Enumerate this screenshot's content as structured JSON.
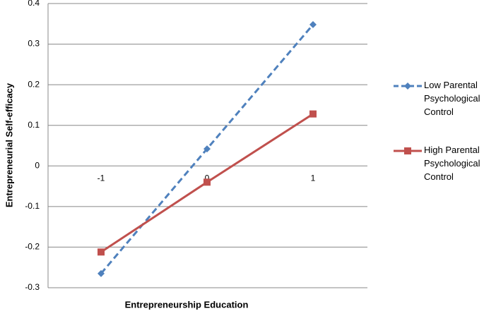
{
  "chart_data": {
    "type": "line",
    "x_label": "Entrepreneurship Education",
    "y_label": "Entrepreneurial Self-efficacy",
    "categories": [
      "-1",
      "0",
      "1"
    ],
    "series": [
      {
        "name": "Low Parental Psychological Control",
        "color": "#4f81bd",
        "line_style": "dashed",
        "marker": "diamond",
        "values": [
          -0.265,
          0.042,
          0.348
        ]
      },
      {
        "name": "High Parental Psychological Control",
        "color": "#c0504d",
        "line_style": "solid",
        "marker": "square",
        "values": [
          -0.212,
          -0.04,
          0.128
        ]
      }
    ],
    "ylim": [
      -0.3,
      0.4
    ],
    "yticks": [
      -0.3,
      -0.2,
      -0.1,
      0,
      0.1,
      0.2,
      0.3,
      0.4
    ],
    "grid": true,
    "legend": "right"
  }
}
